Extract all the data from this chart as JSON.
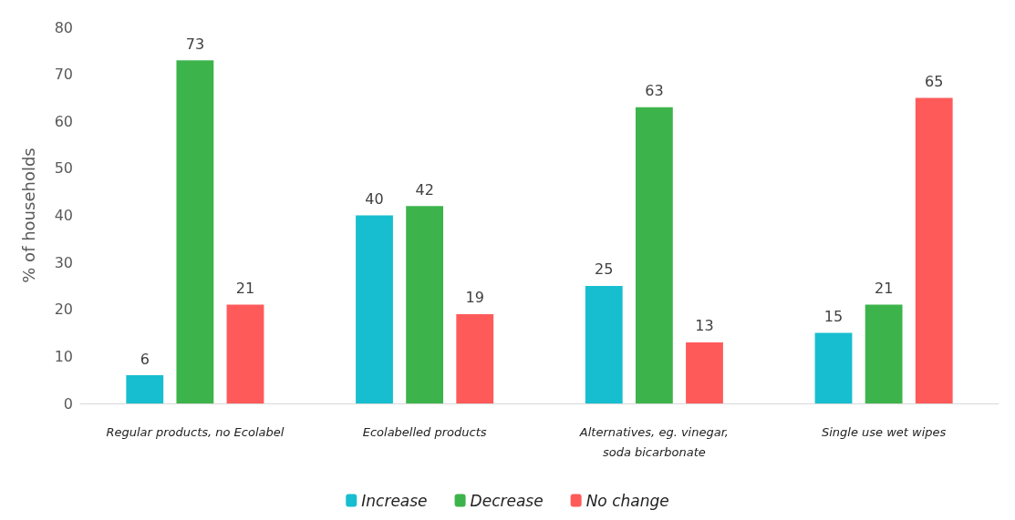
{
  "chart_data": {
    "type": "bar",
    "ylabel": "% of households",
    "categories": [
      "Regular products, no Ecolabel",
      "Ecolabelled products",
      "Alternatives, eg. vinegar,\nsoda bicarbonate",
      "Single use wet wipes"
    ],
    "series": [
      {
        "name": "Increase",
        "color": "#17becf",
        "values": [
          6,
          40,
          25,
          15
        ]
      },
      {
        "name": "Decrease",
        "color": "#3cb44b",
        "values": [
          73,
          42,
          63,
          21
        ]
      },
      {
        "name": "No change",
        "color": "#ff5a5a",
        "values": [
          21,
          19,
          13,
          65
        ]
      }
    ],
    "ylim": [
      0,
      80
    ],
    "yticks": [
      0,
      10,
      20,
      30,
      40,
      50,
      60,
      70,
      80
    ],
    "grid": false,
    "legend": "bottom",
    "data_labels": true
  }
}
